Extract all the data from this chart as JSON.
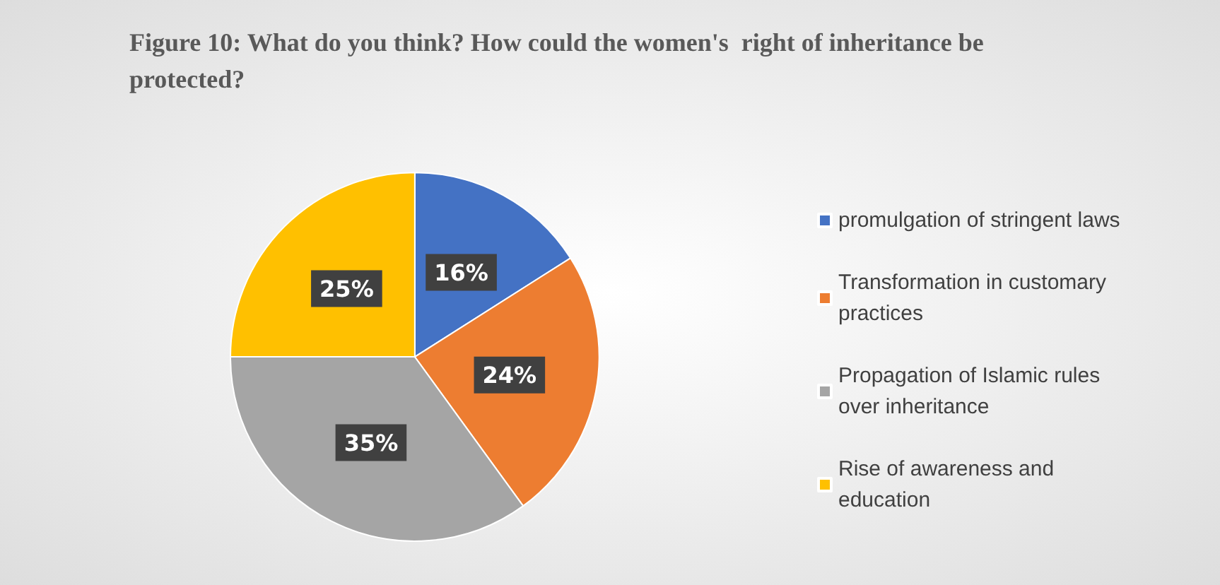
{
  "chart_data": {
    "type": "pie",
    "title": "Figure 10: What do you think? How could the women's  right of inheritance be protected?",
    "categories": [
      "promulgation of stringent laws",
      "Transformation in customary practices",
      "Propagation of Islamic rules over inheritance",
      "Rise of awareness and education"
    ],
    "values": [
      16,
      24,
      35,
      25
    ],
    "colors": [
      "#4472c4",
      "#ed7d31",
      "#a5a5a5",
      "#ffc000"
    ],
    "value_labels": [
      "16%",
      "24%",
      "35%",
      "25%"
    ],
    "legend": "right"
  }
}
